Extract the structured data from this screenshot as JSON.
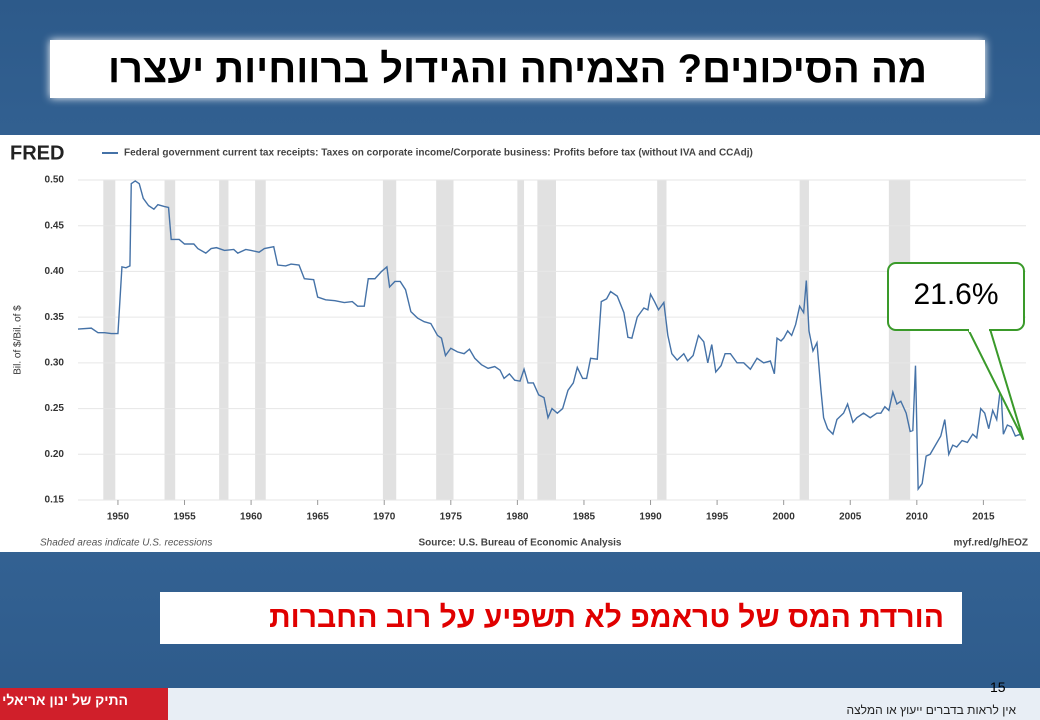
{
  "slide": {
    "title": "מה הסיכונים? הצמיחה והגידול ברווחיות יעצרו",
    "message": "הורדת המס של טראמפ לא תשפיע על רוב החברות",
    "page_number": "15",
    "disclaimer": "אין לראות בדברים ייעוץ או המלצה",
    "brand": "התיק של ינון אריאלי"
  },
  "chart_data": {
    "type": "line",
    "logo": "FRED",
    "y_label": "Bil. of $/Bil. of $",
    "note": "Shaded areas indicate U.S. recessions",
    "source": "Source: U.S. Bureau of Economic Analysis",
    "link": "myf.red/g/hEOZ",
    "annotation": {
      "text": "21.6%",
      "value": 21.6
    },
    "xlim": [
      1947,
      2018.2
    ],
    "ylim": [
      0.15,
      0.5
    ],
    "xticks": [
      1950,
      1955,
      1960,
      1965,
      1970,
      1975,
      1980,
      1985,
      1990,
      1995,
      2000,
      2005,
      2010,
      2015
    ],
    "yticks": [
      0.15,
      {
        "value": 0.2,
        "label": "0.20"
      },
      0.25,
      {
        "value": 0.3,
        "label": "0.30"
      },
      0.35,
      {
        "value": 0.4,
        "label": "0.40"
      },
      0.45,
      {
        "value": 0.5,
        "label": "0.50"
      }
    ],
    "grid": true,
    "recession_color": "#e1e1e1",
    "recessions": [
      [
        1948.9,
        1949.8
      ],
      [
        1953.5,
        1954.3
      ],
      [
        1957.6,
        1958.3
      ],
      [
        1960.3,
        1961.1
      ],
      [
        1969.9,
        1970.9
      ],
      [
        1973.9,
        1975.2
      ],
      [
        1980.0,
        1980.5
      ],
      [
        1981.5,
        1982.9
      ],
      [
        1990.5,
        1991.2
      ],
      [
        2001.2,
        2001.9
      ],
      [
        2007.9,
        2009.5
      ]
    ],
    "series": [
      {
        "name": "Federal government current tax receipts: Taxes on corporate income/Corporate business: Profits before tax (without IVA and CCAdj)",
        "color": "#4572a7",
        "x": [
          1947,
          1948,
          1948.5,
          1949,
          1949.5,
          1950,
          1950.3,
          1950.6,
          1950.9,
          1951,
          1951.3,
          1951.6,
          1951.9,
          1952.3,
          1952.7,
          1953,
          1953.5,
          1953.8,
          1954,
          1954.6,
          1955,
          1955.7,
          1956,
          1956.6,
          1957,
          1957.4,
          1958,
          1958.7,
          1959,
          1959.6,
          1960,
          1960.6,
          1961,
          1961.7,
          1962,
          1962.6,
          1963,
          1963.6,
          1964,
          1964.7,
          1965,
          1965.6,
          1966.3,
          1967,
          1967.6,
          1968,
          1968.5,
          1968.8,
          1969.3,
          1969.8,
          1970.2,
          1970.4,
          1970.8,
          1971.2,
          1971.6,
          1972,
          1972.5,
          1973,
          1973.5,
          1974,
          1974.3,
          1974.6,
          1975,
          1975.5,
          1976,
          1976.4,
          1976.8,
          1977.3,
          1977.8,
          1978.3,
          1978.7,
          1979,
          1979.4,
          1979.8,
          1980.2,
          1980.5,
          1980.8,
          1981.2,
          1981.6,
          1982,
          1982.3,
          1982.6,
          1983,
          1983.4,
          1983.8,
          1984.2,
          1984.5,
          1984.9,
          1985.2,
          1985.5,
          1986,
          1986.3,
          1986.7,
          1987,
          1987.5,
          1988,
          1988.3,
          1988.6,
          1989,
          1989.5,
          1989.8,
          1990,
          1990.3,
          1990.6,
          1991,
          1991.3,
          1991.6,
          1992,
          1992.5,
          1992.8,
          1993.2,
          1993.6,
          1994,
          1994.3,
          1994.6,
          1994.9,
          1995.3,
          1995.6,
          1996,
          1996.5,
          1997,
          1997.5,
          1998,
          1998.5,
          1999,
          1999.3,
          1999.5,
          1999.8,
          2000,
          2000.3,
          2000.6,
          2000.9,
          2001.2,
          2001.5,
          2001.7,
          2001.9,
          2002.2,
          2002.5,
          2002.8,
          2003,
          2003.3,
          2003.7,
          2004,
          2004.5,
          2004.8,
          2005.2,
          2005.5,
          2006,
          2006.5,
          2007,
          2007.3,
          2007.6,
          2007.9,
          2008.2,
          2008.5,
          2008.8,
          2009.2,
          2009.5,
          2009.7,
          2009.9,
          2010.1,
          2010.4,
          2010.7,
          2011,
          2011.4,
          2011.8,
          2012.1,
          2012.4,
          2012.7,
          2013,
          2013.4,
          2013.8,
          2014.2,
          2014.5,
          2014.8,
          2015.1,
          2015.4,
          2015.7,
          2016,
          2016.3,
          2016.5,
          2016.8,
          2017.1,
          2017.4,
          2017.8,
          2018
        ],
        "values": [
          0.337,
          0.338,
          0.333,
          0.333,
          0.332,
          0.332,
          0.405,
          0.404,
          0.406,
          0.496,
          0.499,
          0.496,
          0.48,
          0.472,
          0.468,
          0.473,
          0.471,
          0.47,
          0.435,
          0.435,
          0.43,
          0.43,
          0.425,
          0.42,
          0.425,
          0.426,
          0.423,
          0.424,
          0.42,
          0.424,
          0.423,
          0.421,
          0.425,
          0.427,
          0.407,
          0.406,
          0.408,
          0.407,
          0.392,
          0.391,
          0.372,
          0.369,
          0.368,
          0.366,
          0.367,
          0.362,
          0.362,
          0.392,
          0.392,
          0.4,
          0.405,
          0.383,
          0.389,
          0.389,
          0.38,
          0.356,
          0.349,
          0.345,
          0.343,
          0.33,
          0.327,
          0.308,
          0.316,
          0.312,
          0.31,
          0.315,
          0.305,
          0.298,
          0.294,
          0.296,
          0.292,
          0.283,
          0.288,
          0.281,
          0.28,
          0.293,
          0.278,
          0.278,
          0.265,
          0.262,
          0.24,
          0.25,
          0.245,
          0.25,
          0.27,
          0.278,
          0.295,
          0.283,
          0.283,
          0.305,
          0.304,
          0.367,
          0.37,
          0.378,
          0.373,
          0.355,
          0.328,
          0.327,
          0.35,
          0.36,
          0.358,
          0.375,
          0.367,
          0.358,
          0.366,
          0.33,
          0.31,
          0.303,
          0.31,
          0.302,
          0.308,
          0.33,
          0.323,
          0.3,
          0.32,
          0.29,
          0.297,
          0.31,
          0.31,
          0.3,
          0.3,
          0.293,
          0.305,
          0.3,
          0.302,
          0.288,
          0.327,
          0.324,
          0.327,
          0.335,
          0.33,
          0.342,
          0.362,
          0.355,
          0.39,
          0.335,
          0.313,
          0.322,
          0.27,
          0.24,
          0.228,
          0.222,
          0.238,
          0.245,
          0.255,
          0.235,
          0.24,
          0.245,
          0.24,
          0.245,
          0.245,
          0.252,
          0.248,
          0.268,
          0.255,
          0.258,
          0.245,
          0.225,
          0.226,
          0.297,
          0.162,
          0.168,
          0.198,
          0.2,
          0.21,
          0.22,
          0.238,
          0.2,
          0.21,
          0.208,
          0.215,
          0.213,
          0.222,
          0.218,
          0.25,
          0.245,
          0.228,
          0.248,
          0.238,
          0.275,
          0.222,
          0.232,
          0.23,
          0.22,
          0.222,
          0.216
        ]
      }
    ]
  }
}
